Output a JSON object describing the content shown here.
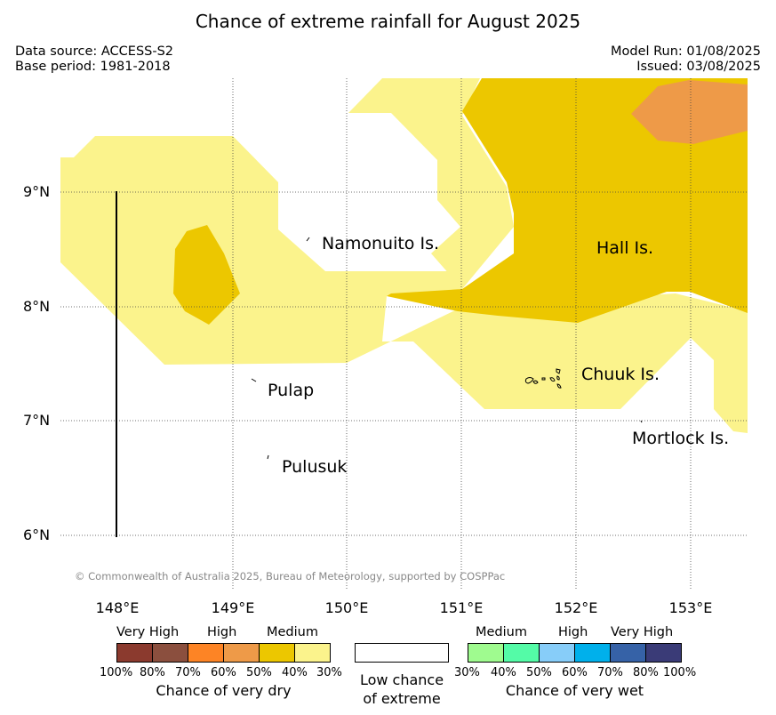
{
  "title": "Chance of extreme rainfall for August 2025",
  "data_source": "Data source: ACCESS-S2",
  "base_period": "Base period: 1981-2018",
  "model_run": "Model Run: 01/08/2025",
  "issued": "Issued: 03/08/2025",
  "map": {
    "lon_range": [
      147.5,
      153.5
    ],
    "lat_range": [
      5.5,
      9.9
    ],
    "grid": true,
    "lat_labels": [
      "9°N",
      "8°N",
      "7°N",
      "6°N"
    ],
    "lon_labels": [
      "148°E",
      "149°E",
      "150°E",
      "151°E",
      "152°E",
      "153°E"
    ],
    "places": [
      {
        "name": "Namonuito Is."
      },
      {
        "name": "Hall Is."
      },
      {
        "name": "Pulap"
      },
      {
        "name": "Chuuk Is."
      },
      {
        "name": "Mortlock Is."
      },
      {
        "name": "Pulusuk"
      }
    ],
    "colors": {
      "dry_medium": "#fbf38c",
      "dry_40_50": "#ecc700",
      "dry_high_50_60": "#ee9a48"
    }
  },
  "copyright": "© Commonwealth of Australia 2025, Bureau of Meteorology, supported by COSPPac",
  "legend": {
    "dry": {
      "headings": [
        "Very High",
        "High",
        "Medium"
      ],
      "ticks": [
        "100%",
        "80%",
        "70%",
        "60%",
        "50%",
        "40%",
        "30%"
      ],
      "colors": [
        "#8b3a2e",
        "#8b4f3e",
        "#fd8425",
        "#ee9a48",
        "#ecc700",
        "#fbf38c"
      ],
      "caption": "Chance of very dry"
    },
    "neutral": {
      "caption_line1": "Low chance",
      "caption_line2": "of extreme"
    },
    "wet": {
      "headings": [
        "Medium",
        "High",
        "Very High"
      ],
      "ticks": [
        "30%",
        "40%",
        "50%",
        "60%",
        "70%",
        "80%",
        "100%"
      ],
      "colors": [
        "#9ffb8f",
        "#54fba7",
        "#87cdf9",
        "#00b0eb",
        "#3662a7",
        "#3a3b77"
      ],
      "caption": "Chance of very wet"
    }
  }
}
